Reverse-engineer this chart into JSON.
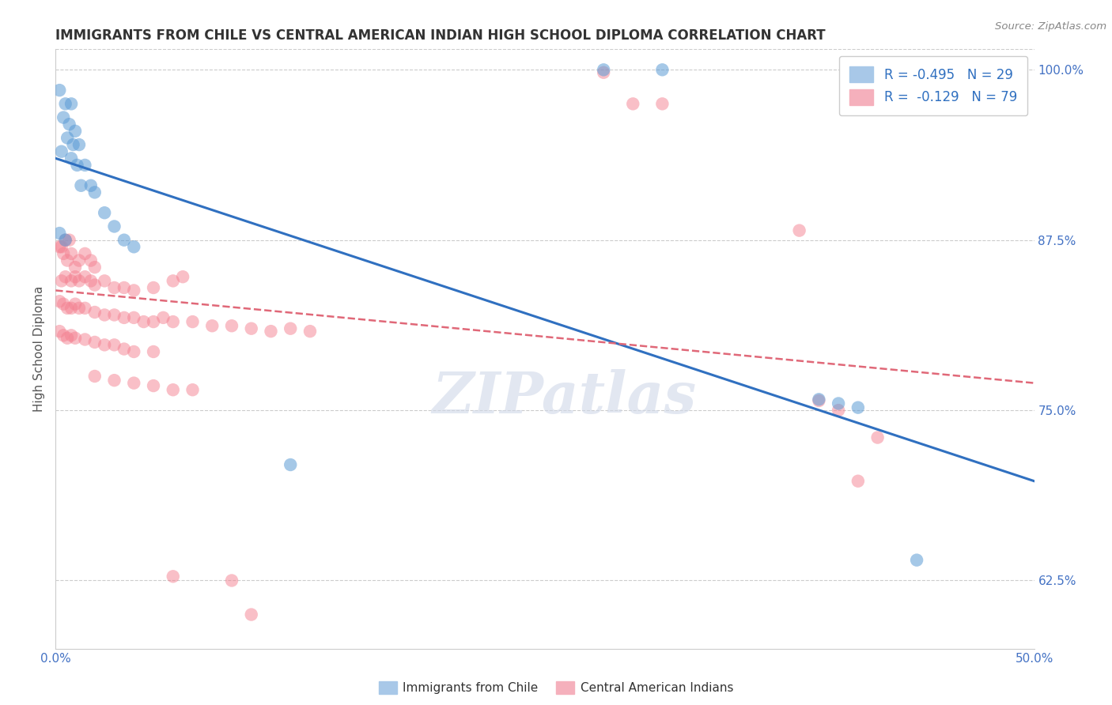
{
  "title": "IMMIGRANTS FROM CHILE VS CENTRAL AMERICAN INDIAN HIGH SCHOOL DIPLOMA CORRELATION CHART",
  "source": "Source: ZipAtlas.com",
  "ylabel": "High School Diploma",
  "x_min": 0.0,
  "x_max": 0.5,
  "y_min": 0.575,
  "y_max": 1.015,
  "y_ticks": [
    0.625,
    0.75,
    0.875,
    1.0
  ],
  "y_tick_labels": [
    "62.5%",
    "75.0%",
    "87.5%",
    "100.0%"
  ],
  "x_ticks": [
    0.0,
    0.1,
    0.2,
    0.3,
    0.4,
    0.5
  ],
  "x_tick_labels": [
    "0.0%",
    "",
    "",
    "",
    "",
    "50.0%"
  ],
  "watermark": "ZIPatlas",
  "blue_color": "#5b9bd5",
  "pink_color": "#f48090",
  "background_color": "#ffffff",
  "grid_color": "#cccccc",
  "title_color": "#333333",
  "label_color": "#4472c4",
  "blue_dots": [
    [
      0.002,
      0.985
    ],
    [
      0.005,
      0.975
    ],
    [
      0.008,
      0.975
    ],
    [
      0.004,
      0.965
    ],
    [
      0.007,
      0.96
    ],
    [
      0.01,
      0.955
    ],
    [
      0.006,
      0.95
    ],
    [
      0.009,
      0.945
    ],
    [
      0.012,
      0.945
    ],
    [
      0.003,
      0.94
    ],
    [
      0.008,
      0.935
    ],
    [
      0.011,
      0.93
    ],
    [
      0.015,
      0.93
    ],
    [
      0.013,
      0.915
    ],
    [
      0.018,
      0.915
    ],
    [
      0.02,
      0.91
    ],
    [
      0.025,
      0.895
    ],
    [
      0.03,
      0.885
    ],
    [
      0.002,
      0.88
    ],
    [
      0.005,
      0.875
    ],
    [
      0.035,
      0.875
    ],
    [
      0.04,
      0.87
    ],
    [
      0.28,
      1.0
    ],
    [
      0.31,
      1.0
    ],
    [
      0.39,
      0.758
    ],
    [
      0.4,
      0.755
    ],
    [
      0.41,
      0.752
    ],
    [
      0.44,
      0.64
    ],
    [
      0.12,
      0.71
    ]
  ],
  "pink_dots": [
    [
      0.002,
      0.87
    ],
    [
      0.003,
      0.87
    ],
    [
      0.004,
      0.865
    ],
    [
      0.005,
      0.875
    ],
    [
      0.006,
      0.86
    ],
    [
      0.007,
      0.875
    ],
    [
      0.008,
      0.865
    ],
    [
      0.01,
      0.855
    ],
    [
      0.012,
      0.86
    ],
    [
      0.015,
      0.865
    ],
    [
      0.018,
      0.86
    ],
    [
      0.02,
      0.855
    ],
    [
      0.003,
      0.845
    ],
    [
      0.005,
      0.848
    ],
    [
      0.008,
      0.845
    ],
    [
      0.01,
      0.848
    ],
    [
      0.012,
      0.845
    ],
    [
      0.015,
      0.848
    ],
    [
      0.018,
      0.845
    ],
    [
      0.02,
      0.842
    ],
    [
      0.025,
      0.845
    ],
    [
      0.03,
      0.84
    ],
    [
      0.035,
      0.84
    ],
    [
      0.04,
      0.838
    ],
    [
      0.05,
      0.84
    ],
    [
      0.06,
      0.845
    ],
    [
      0.065,
      0.848
    ],
    [
      0.002,
      0.83
    ],
    [
      0.004,
      0.828
    ],
    [
      0.006,
      0.825
    ],
    [
      0.008,
      0.825
    ],
    [
      0.01,
      0.828
    ],
    [
      0.012,
      0.825
    ],
    [
      0.015,
      0.825
    ],
    [
      0.02,
      0.822
    ],
    [
      0.025,
      0.82
    ],
    [
      0.03,
      0.82
    ],
    [
      0.035,
      0.818
    ],
    [
      0.04,
      0.818
    ],
    [
      0.045,
      0.815
    ],
    [
      0.05,
      0.815
    ],
    [
      0.055,
      0.818
    ],
    [
      0.06,
      0.815
    ],
    [
      0.07,
      0.815
    ],
    [
      0.08,
      0.812
    ],
    [
      0.09,
      0.812
    ],
    [
      0.1,
      0.81
    ],
    [
      0.11,
      0.808
    ],
    [
      0.12,
      0.81
    ],
    [
      0.13,
      0.808
    ],
    [
      0.002,
      0.808
    ],
    [
      0.004,
      0.805
    ],
    [
      0.006,
      0.803
    ],
    [
      0.008,
      0.805
    ],
    [
      0.01,
      0.803
    ],
    [
      0.015,
      0.802
    ],
    [
      0.02,
      0.8
    ],
    [
      0.025,
      0.798
    ],
    [
      0.03,
      0.798
    ],
    [
      0.035,
      0.795
    ],
    [
      0.04,
      0.793
    ],
    [
      0.05,
      0.793
    ],
    [
      0.02,
      0.775
    ],
    [
      0.03,
      0.772
    ],
    [
      0.04,
      0.77
    ],
    [
      0.05,
      0.768
    ],
    [
      0.06,
      0.765
    ],
    [
      0.07,
      0.765
    ],
    [
      0.28,
      0.998
    ],
    [
      0.295,
      0.975
    ],
    [
      0.31,
      0.975
    ],
    [
      0.38,
      0.882
    ],
    [
      0.39,
      0.757
    ],
    [
      0.4,
      0.75
    ],
    [
      0.42,
      0.73
    ],
    [
      0.41,
      0.698
    ],
    [
      0.06,
      0.628
    ],
    [
      0.09,
      0.625
    ],
    [
      0.1,
      0.6
    ]
  ],
  "blue_line_x": [
    0.0,
    0.5
  ],
  "blue_line_y": [
    0.935,
    0.698
  ],
  "pink_line_x": [
    0.0,
    0.5
  ],
  "pink_line_y": [
    0.838,
    0.77
  ]
}
